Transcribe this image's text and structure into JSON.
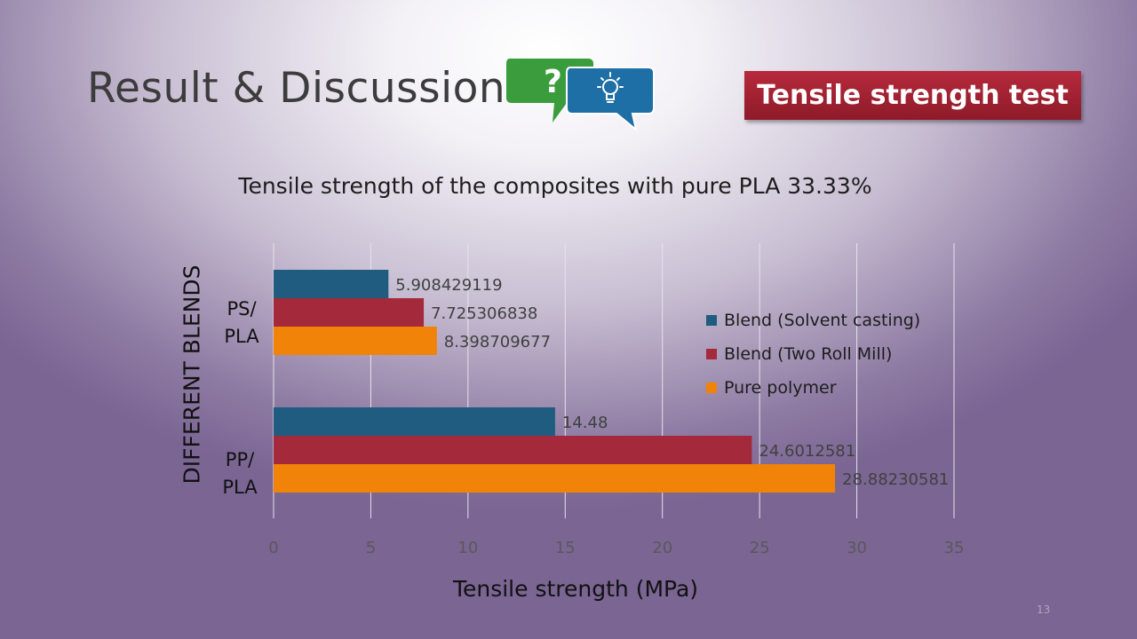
{
  "slide": {
    "title": "Result & Discussion",
    "badge": "Tensile strength test",
    "page_number": "13",
    "bubble_question": "?"
  },
  "chart_data": {
    "type": "bar",
    "orientation": "horizontal",
    "title": "Tensile strength of the composites with pure PLA 33.33%",
    "xlabel": "Tensile strength (MPa)",
    "ylabel": "DIFFERENT BLENDS",
    "categories": [
      {
        "line1": "PS/",
        "line2": "PLA"
      },
      {
        "line1": "PP/",
        "line2": "PLA"
      }
    ],
    "series": [
      {
        "name": "Blend (Solvent casting)",
        "color": "#1f5c80",
        "values": [
          5.908429119,
          14.48
        ],
        "labels": [
          "5.908429119",
          "14.48"
        ]
      },
      {
        "name": "Blend (Two Roll Mill)",
        "color": "#a3293b",
        "values": [
          7.725306838,
          24.6012581
        ],
        "labels": [
          "7.725306838",
          "24.6012581"
        ]
      },
      {
        "name": "Pure polymer",
        "color": "#f08308",
        "values": [
          8.398709677,
          28.88230581
        ],
        "labels": [
          "8.398709677",
          "28.88230581"
        ]
      }
    ],
    "xlim": [
      0,
      35
    ],
    "xticks": [
      "0",
      "5",
      "10",
      "15",
      "20",
      "25",
      "30",
      "35"
    ],
    "grid": true,
    "legend_position": "right"
  }
}
